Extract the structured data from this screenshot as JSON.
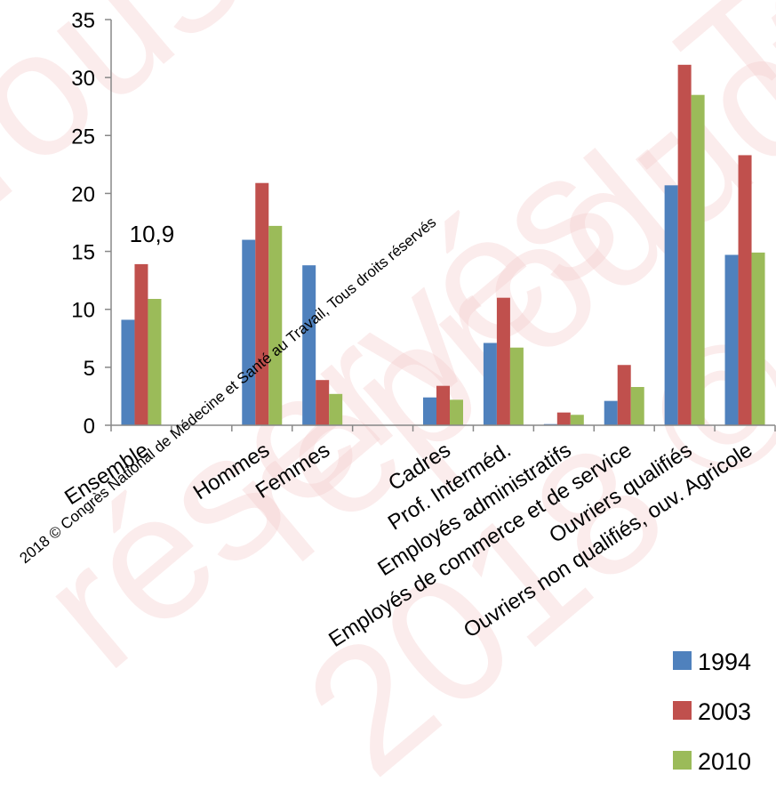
{
  "chart_data": {
    "type": "bar",
    "categories": [
      "Ensemble",
      "",
      "Hommes",
      "Femmes",
      "",
      "Cadres",
      "Prof. Interméd.",
      "Employés administratifs",
      "Employés de commerce et de service",
      "Ouvriers qualifiés",
      "Ouvriers non qualifiés, ouv. Agricole"
    ],
    "series": [
      {
        "name": "1994",
        "color": "#4F81BD",
        "values": [
          9.1,
          null,
          16.0,
          13.8,
          null,
          2.4,
          7.1,
          0.1,
          2.1,
          20.7,
          14.7
        ]
      },
      {
        "name": "2003",
        "color": "#C0504D",
        "values": [
          13.9,
          null,
          20.9,
          3.9,
          null,
          3.4,
          11.0,
          1.1,
          5.2,
          31.1,
          23.3
        ]
      },
      {
        "name": "2010",
        "color": "#9BBB59",
        "values": [
          10.9,
          null,
          17.2,
          2.7,
          null,
          2.2,
          6.7,
          0.9,
          3.3,
          28.5,
          14.9
        ]
      }
    ],
    "ylim": [
      0,
      35
    ],
    "yticks": [
      0,
      5,
      10,
      15,
      20,
      25,
      30,
      35
    ],
    "grid": false,
    "legend_position": "bottom-right",
    "annotations": [
      {
        "text": "10,9",
        "category_index": 0,
        "series_index": 2
      }
    ]
  },
  "watermark": {
    "text": "2018 © Congrès National de Médecine et Santé au Travail, Tous droits réservés",
    "background_text": [
      "Tous droits",
      "réservés - Toute",
      "reproduction",
      "2018 © Congrès"
    ]
  }
}
